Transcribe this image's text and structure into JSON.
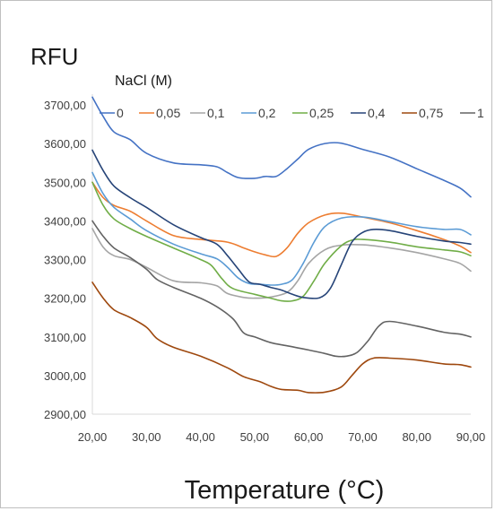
{
  "chart_data": {
    "type": "line",
    "xlabel": "Temperature (°C)",
    "ylabel": "RFU",
    "legend_title": "NaCl (M)",
    "legend_placement": "top",
    "xlim": [
      20,
      90
    ],
    "ylim": [
      2900,
      3700
    ],
    "x_ticks": [
      20,
      30,
      40,
      50,
      60,
      70,
      80,
      90
    ],
    "y_ticks": [
      2900,
      3000,
      3100,
      3200,
      3300,
      3400,
      3500,
      3600,
      3700
    ],
    "x_tick_labels": [
      "20,00",
      "30,00",
      "40,00",
      "50,00",
      "60,00",
      "70,00",
      "80,00",
      "90,00"
    ],
    "y_tick_labels": [
      "2900,00",
      "3000,00",
      "3100,00",
      "3200,00",
      "3300,00",
      "3400,00",
      "3500,00",
      "3600,00",
      "3700,00"
    ],
    "grid": false,
    "series": [
      {
        "name": "0",
        "color": "#4472C4",
        "points": [
          [
            20,
            3720
          ],
          [
            22,
            3670
          ],
          [
            24,
            3630
          ],
          [
            27,
            3610
          ],
          [
            30,
            3575
          ],
          [
            35,
            3550
          ],
          [
            40,
            3545
          ],
          [
            43,
            3540
          ],
          [
            45,
            3525
          ],
          [
            47,
            3512
          ],
          [
            50,
            3510
          ],
          [
            52,
            3515
          ],
          [
            54,
            3515
          ],
          [
            56,
            3535
          ],
          [
            58,
            3560
          ],
          [
            60,
            3585
          ],
          [
            63,
            3600
          ],
          [
            66,
            3601
          ],
          [
            70,
            3585
          ],
          [
            75,
            3565
          ],
          [
            80,
            3535
          ],
          [
            85,
            3505
          ],
          [
            88,
            3485
          ],
          [
            90,
            3462
          ]
        ]
      },
      {
        "name": "0,05",
        "color": "#ED7D31",
        "points": [
          [
            20,
            3500
          ],
          [
            22,
            3460
          ],
          [
            24,
            3440
          ],
          [
            27,
            3425
          ],
          [
            30,
            3400
          ],
          [
            35,
            3362
          ],
          [
            40,
            3352
          ],
          [
            45,
            3345
          ],
          [
            48,
            3330
          ],
          [
            50,
            3320
          ],
          [
            52,
            3312
          ],
          [
            54,
            3308
          ],
          [
            56,
            3330
          ],
          [
            58,
            3368
          ],
          [
            60,
            3395
          ],
          [
            63,
            3415
          ],
          [
            66,
            3420
          ],
          [
            70,
            3410
          ],
          [
            75,
            3395
          ],
          [
            80,
            3375
          ],
          [
            85,
            3352
          ],
          [
            88,
            3335
          ],
          [
            90,
            3318
          ]
        ]
      },
      {
        "name": "0,1",
        "color": "#A5A5A5",
        "points": [
          [
            20,
            3380
          ],
          [
            22,
            3332
          ],
          [
            24,
            3310
          ],
          [
            27,
            3300
          ],
          [
            30,
            3280
          ],
          [
            35,
            3245
          ],
          [
            40,
            3240
          ],
          [
            43,
            3232
          ],
          [
            45,
            3212
          ],
          [
            48,
            3202
          ],
          [
            50,
            3200
          ],
          [
            53,
            3203
          ],
          [
            56,
            3215
          ],
          [
            58,
            3245
          ],
          [
            60,
            3290
          ],
          [
            63,
            3325
          ],
          [
            66,
            3337
          ],
          [
            70,
            3338
          ],
          [
            75,
            3330
          ],
          [
            80,
            3318
          ],
          [
            85,
            3302
          ],
          [
            88,
            3290
          ],
          [
            90,
            3270
          ]
        ]
      },
      {
        "name": "0,2",
        "color": "#5B9BD5",
        "points": [
          [
            20,
            3525
          ],
          [
            22,
            3470
          ],
          [
            24,
            3435
          ],
          [
            27,
            3405
          ],
          [
            30,
            3375
          ],
          [
            35,
            3340
          ],
          [
            40,
            3315
          ],
          [
            43,
            3302
          ],
          [
            45,
            3280
          ],
          [
            47,
            3252
          ],
          [
            49,
            3238
          ],
          [
            51,
            3236
          ],
          [
            53,
            3234
          ],
          [
            55,
            3236
          ],
          [
            57,
            3248
          ],
          [
            59,
            3290
          ],
          [
            61,
            3345
          ],
          [
            63,
            3385
          ],
          [
            66,
            3407
          ],
          [
            70,
            3410
          ],
          [
            75,
            3398
          ],
          [
            80,
            3385
          ],
          [
            85,
            3378
          ],
          [
            88,
            3378
          ],
          [
            90,
            3364
          ]
        ]
      },
      {
        "name": "0,25",
        "color": "#70AD47",
        "points": [
          [
            20,
            3500
          ],
          [
            22,
            3440
          ],
          [
            24,
            3405
          ],
          [
            27,
            3380
          ],
          [
            30,
            3360
          ],
          [
            35,
            3330
          ],
          [
            40,
            3300
          ],
          [
            42,
            3285
          ],
          [
            44,
            3250
          ],
          [
            46,
            3225
          ],
          [
            50,
            3210
          ],
          [
            53,
            3200
          ],
          [
            55,
            3193
          ],
          [
            57,
            3193
          ],
          [
            59,
            3205
          ],
          [
            61,
            3245
          ],
          [
            63,
            3290
          ],
          [
            66,
            3335
          ],
          [
            68,
            3350
          ],
          [
            70,
            3352
          ],
          [
            75,
            3345
          ],
          [
            80,
            3333
          ],
          [
            85,
            3325
          ],
          [
            88,
            3320
          ],
          [
            90,
            3310
          ]
        ]
      },
      {
        "name": "0,4",
        "color": "#264478",
        "points": [
          [
            20,
            3583
          ],
          [
            22,
            3530
          ],
          [
            24,
            3490
          ],
          [
            27,
            3460
          ],
          [
            30,
            3435
          ],
          [
            35,
            3390
          ],
          [
            40,
            3357
          ],
          [
            43,
            3340
          ],
          [
            45,
            3310
          ],
          [
            47,
            3275
          ],
          [
            49,
            3242
          ],
          [
            51,
            3236
          ],
          [
            53,
            3228
          ],
          [
            55,
            3221
          ],
          [
            57,
            3210
          ],
          [
            59,
            3202
          ],
          [
            62,
            3201
          ],
          [
            64,
            3225
          ],
          [
            66,
            3285
          ],
          [
            68,
            3345
          ],
          [
            70,
            3370
          ],
          [
            72,
            3378
          ],
          [
            75,
            3375
          ],
          [
            80,
            3360
          ],
          [
            85,
            3348
          ],
          [
            88,
            3344
          ],
          [
            90,
            3340
          ]
        ]
      },
      {
        "name": "0,75",
        "color": "#9E480E",
        "points": [
          [
            20,
            3241
          ],
          [
            22,
            3200
          ],
          [
            24,
            3170
          ],
          [
            27,
            3150
          ],
          [
            30,
            3125
          ],
          [
            32,
            3095
          ],
          [
            35,
            3073
          ],
          [
            40,
            3050
          ],
          [
            45,
            3020
          ],
          [
            48,
            2997
          ],
          [
            51,
            2984
          ],
          [
            53,
            2972
          ],
          [
            55,
            2964
          ],
          [
            58,
            2962
          ],
          [
            60,
            2956
          ],
          [
            63,
            2957
          ],
          [
            66,
            2970
          ],
          [
            68,
            3000
          ],
          [
            70,
            3030
          ],
          [
            72,
            3045
          ],
          [
            75,
            3045
          ],
          [
            80,
            3040
          ],
          [
            85,
            3030
          ],
          [
            88,
            3028
          ],
          [
            90,
            3022
          ]
        ]
      },
      {
        "name": "1",
        "color": "#636363",
        "points": [
          [
            20,
            3400
          ],
          [
            22,
            3360
          ],
          [
            24,
            3330
          ],
          [
            27,
            3305
          ],
          [
            30,
            3275
          ],
          [
            32,
            3248
          ],
          [
            35,
            3228
          ],
          [
            40,
            3200
          ],
          [
            43,
            3178
          ],
          [
            46,
            3147
          ],
          [
            48,
            3110
          ],
          [
            50,
            3100
          ],
          [
            53,
            3085
          ],
          [
            56,
            3077
          ],
          [
            60,
            3066
          ],
          [
            63,
            3057
          ],
          [
            65,
            3050
          ],
          [
            67,
            3050
          ],
          [
            69,
            3060
          ],
          [
            71,
            3090
          ],
          [
            73,
            3128
          ],
          [
            75,
            3140
          ],
          [
            80,
            3128
          ],
          [
            85,
            3112
          ],
          [
            88,
            3107
          ],
          [
            90,
            3100
          ]
        ]
      }
    ]
  }
}
